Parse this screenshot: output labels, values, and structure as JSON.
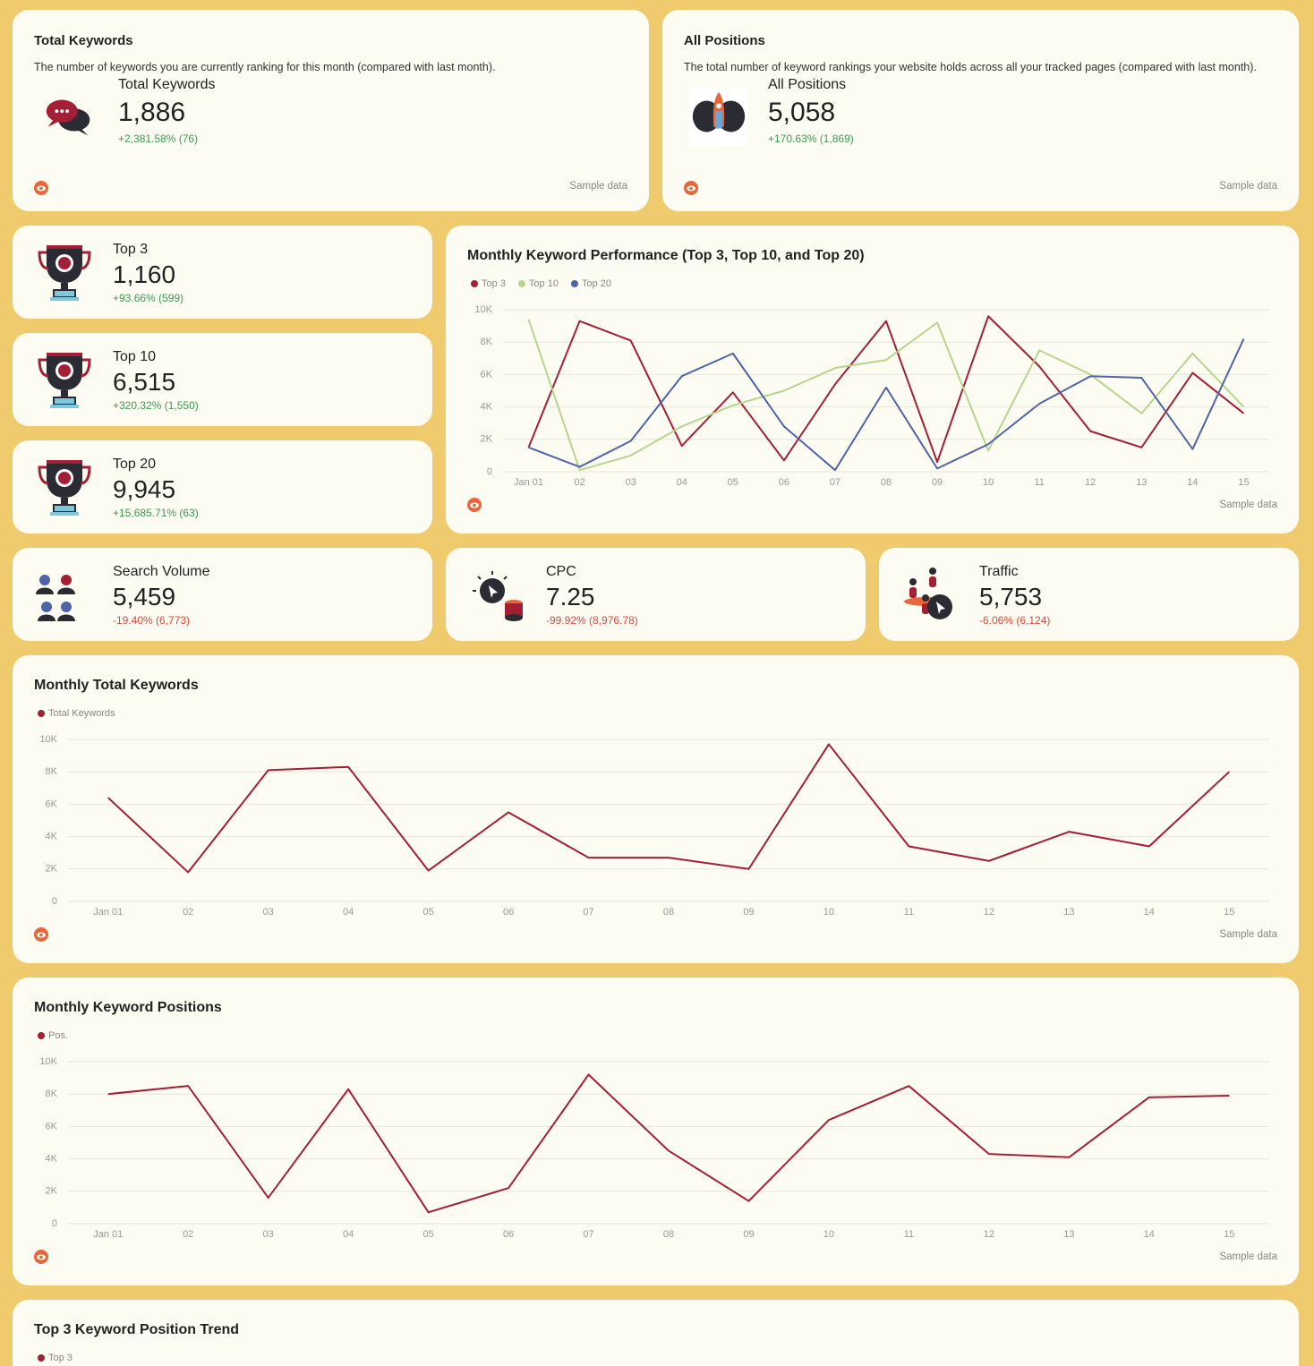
{
  "summary_cards": [
    {
      "title": "Total Keywords",
      "description": "The number of keywords you are currently ranking for this month (compared with last month).",
      "label": "Total Keywords",
      "value": "1,886",
      "change": "+2,381.58% (76)",
      "trend": "up",
      "footer": "Sample data"
    },
    {
      "title": "All Positions",
      "description": "The total number of keyword rankings your website holds across all your tracked pages (compared with last month).",
      "label": "All Positions",
      "value": "5,058",
      "change": "+170.63% (1,869)",
      "trend": "up",
      "footer": "Sample data"
    }
  ],
  "metric_cards": [
    {
      "label": "Top 3",
      "value": "1,160",
      "change": "+93.66% (599)",
      "trend": "up"
    },
    {
      "label": "Top 10",
      "value": "6,515",
      "change": "+320.32% (1,550)",
      "trend": "up"
    },
    {
      "label": "Top 20",
      "value": "9,945",
      "change": "+15,685.71% (63)",
      "trend": "up"
    },
    {
      "label": "Search Volume",
      "value": "5,459",
      "change": "-19.40% (6,773)",
      "trend": "down"
    },
    {
      "label": "CPC",
      "value": "7.25",
      "change": "-99.92% (8,976.78)",
      "trend": "down"
    },
    {
      "label": "Traffic",
      "value": "5,753",
      "change": "-6.06% (6,124)",
      "trend": "down"
    }
  ],
  "chart_data": [
    {
      "type": "line",
      "title": "Monthly Keyword Performance (Top 3, Top 10, and Top 20)",
      "x": [
        "Jan 01",
        "02",
        "03",
        "04",
        "05",
        "06",
        "07",
        "08",
        "09",
        "10",
        "11",
        "12",
        "13",
        "14",
        "15"
      ],
      "series": [
        {
          "name": "Top 3",
          "color": "#a31f34",
          "values": [
            1500,
            9300,
            8100,
            1600,
            4900,
            700,
            5400,
            9300,
            600,
            9600,
            6500,
            2500,
            1500,
            6100,
            3600
          ]
        },
        {
          "name": "Top 10",
          "color": "#b8d58d",
          "values": [
            9400,
            100,
            1000,
            2800,
            4100,
            5000,
            6400,
            6900,
            9200,
            1300,
            7500,
            6000,
            3600,
            7300,
            4000
          ]
        },
        {
          "name": "Top 20",
          "color": "#4f63a8",
          "values": [
            1500,
            300,
            1900,
            5900,
            7300,
            2800,
            100,
            5200,
            200,
            1700,
            4200,
            5900,
            5800,
            1400,
            8200
          ]
        }
      ],
      "ylim": [
        0,
        10000
      ],
      "yticks": [
        0,
        {
          "value": 2000,
          "label": "2K"
        },
        {
          "value": 4000,
          "label": "4K"
        },
        {
          "value": 6000,
          "label": "6K"
        },
        {
          "value": 8000,
          "label": "8K"
        },
        {
          "value": 10000,
          "label": "10K"
        }
      ],
      "grid": true,
      "footer": "Sample data"
    },
    {
      "type": "line",
      "title": "Monthly Total Keywords",
      "x": [
        "Jan 01",
        "02",
        "03",
        "04",
        "05",
        "06",
        "07",
        "08",
        "09",
        "10",
        "11",
        "12",
        "13",
        "14",
        "15"
      ],
      "series": [
        {
          "name": "Total Keywords",
          "color": "#a31f34",
          "values": [
            6400,
            1800,
            8100,
            8300,
            1900,
            5500,
            2700,
            2700,
            2000,
            9700,
            3400,
            2500,
            4300,
            3400,
            8000
          ]
        }
      ],
      "ylim": [
        0,
        10000
      ],
      "yticks": [
        0,
        {
          "value": 2000,
          "label": "2K"
        },
        {
          "value": 4000,
          "label": "4K"
        },
        {
          "value": 6000,
          "label": "6K"
        },
        {
          "value": 8000,
          "label": "8K"
        },
        {
          "value": 10000,
          "label": "10K"
        }
      ],
      "grid": true,
      "footer": "Sample data"
    },
    {
      "type": "line",
      "title": "Monthly Keyword Positions",
      "x": [
        "Jan 01",
        "02",
        "03",
        "04",
        "05",
        "06",
        "07",
        "08",
        "09",
        "10",
        "11",
        "12",
        "13",
        "14",
        "15"
      ],
      "series": [
        {
          "name": "Pos.",
          "color": "#a31f34",
          "values": [
            8000,
            8500,
            1600,
            8300,
            700,
            2200,
            9200,
            4500,
            1400,
            6400,
            8500,
            4300,
            4100,
            7800,
            7900
          ]
        }
      ],
      "ylim": [
        0,
        10000
      ],
      "yticks": [
        0,
        {
          "value": 2000,
          "label": "2K"
        },
        {
          "value": 4000,
          "label": "4K"
        },
        {
          "value": 6000,
          "label": "6K"
        },
        {
          "value": 8000,
          "label": "8K"
        },
        {
          "value": 10000,
          "label": "10K"
        }
      ],
      "grid": true,
      "footer": "Sample data"
    }
  ],
  "partial_card": {
    "title": "Top 3 Keyword Position Trend",
    "legend": "Top 3",
    "legend_color": "#a31f34"
  }
}
